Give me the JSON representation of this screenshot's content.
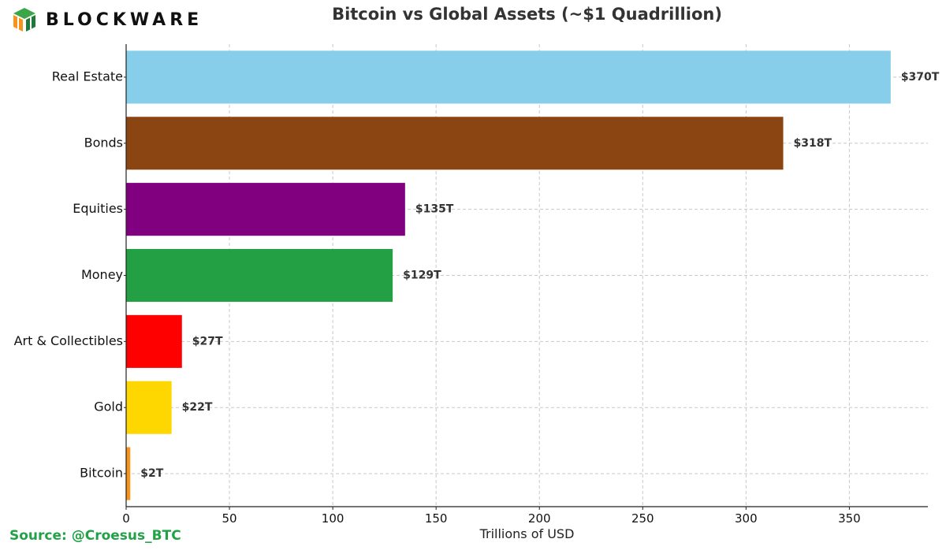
{
  "brand": {
    "name": "BLOCKWARE",
    "logo_colors": [
      "#3aa648",
      "#f7931a",
      "#1e7a3a"
    ]
  },
  "source_text": "Source: @Croesus_BTC",
  "colors": {
    "source": "#23a147",
    "title": "#333333",
    "grid": "#c8c8c8",
    "axis": "#222222"
  },
  "chart_data": {
    "type": "bar",
    "orientation": "horizontal",
    "title": "Bitcoin vs Global Assets (~$1 Quadrillion)",
    "xlabel": "Trillions of USD",
    "ylabel": "",
    "xlim": [
      0,
      388
    ],
    "xticks": [
      0,
      50,
      100,
      150,
      200,
      250,
      300,
      350
    ],
    "grid": true,
    "categories": [
      "Real Estate",
      "Bonds",
      "Equities",
      "Money",
      "Art & Collectibles",
      "Gold",
      "Bitcoin"
    ],
    "values": [
      370,
      318,
      135,
      129,
      27,
      22,
      2
    ],
    "data_labels": [
      "$370T",
      "$318T",
      "$135T",
      "$129T",
      "$27T",
      "$22T",
      "$2T"
    ],
    "bar_colors": [
      "#87ceeb",
      "#8b4513",
      "#800080",
      "#22a043",
      "#ff0000",
      "#ffd700",
      "#f7931a"
    ]
  }
}
